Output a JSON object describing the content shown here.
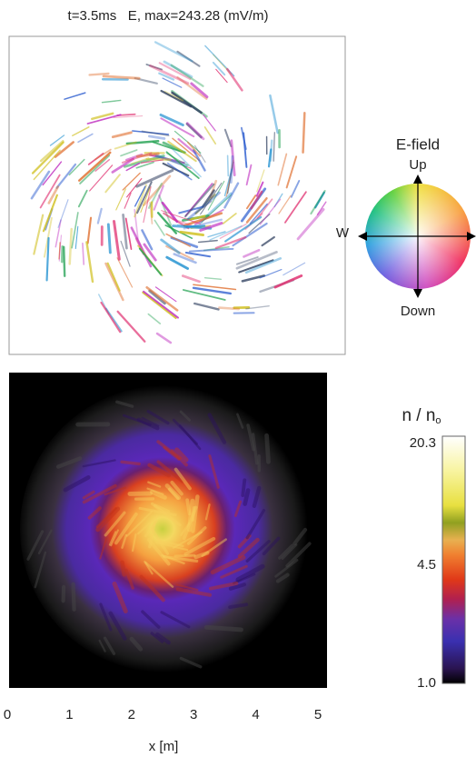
{
  "top_panel": {
    "title": "t=3.5ms   E, max=243.28 (mV/m)"
  },
  "compass": {
    "title": "E-field",
    "up": "Up",
    "down": "Down",
    "west": "W"
  },
  "colorbar": {
    "label": "n / n",
    "label_subscript": "o",
    "ticks": [
      "20.3",
      "4.5",
      "1.0"
    ]
  },
  "x_axis": {
    "label": "x [m]",
    "ticks": [
      "0",
      "1",
      "2",
      "3",
      "4",
      "5"
    ]
  }
}
